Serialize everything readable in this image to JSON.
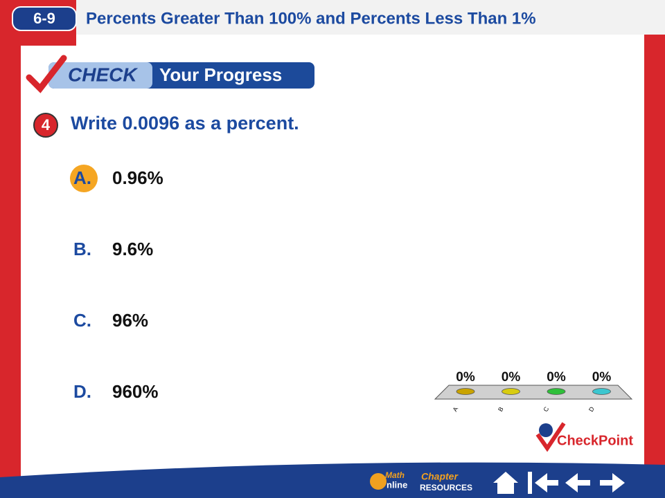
{
  "header": {
    "lesson": "6-9",
    "title": "Percents Greater Than 100% and Percents Less Than 1%"
  },
  "banner": {
    "check": "CHECK",
    "progress": "Your Progress"
  },
  "question": {
    "number": "4",
    "text": "Write 0.0096 as a percent."
  },
  "options": [
    {
      "letter": "A.",
      "text": "0.96%"
    },
    {
      "letter": "B.",
      "text": "9.6%"
    },
    {
      "letter": "C.",
      "text": "96%"
    },
    {
      "letter": "D.",
      "text": "960%"
    }
  ],
  "response_chart": {
    "type": "bar",
    "categories": [
      "A",
      "B",
      "C",
      "D"
    ],
    "values": [
      0,
      0,
      0,
      0
    ],
    "value_labels": [
      "0%",
      "0%",
      "0%",
      "0%"
    ],
    "colors": [
      "#c9a300",
      "#d8cc10",
      "#2fbf3a",
      "#3cc6cf"
    ]
  },
  "logo": {
    "text": "CheckPoint"
  },
  "footer": {
    "math": "Math",
    "online": "nline",
    "chapter": "Chapter",
    "resources": "RESOURCES"
  }
}
